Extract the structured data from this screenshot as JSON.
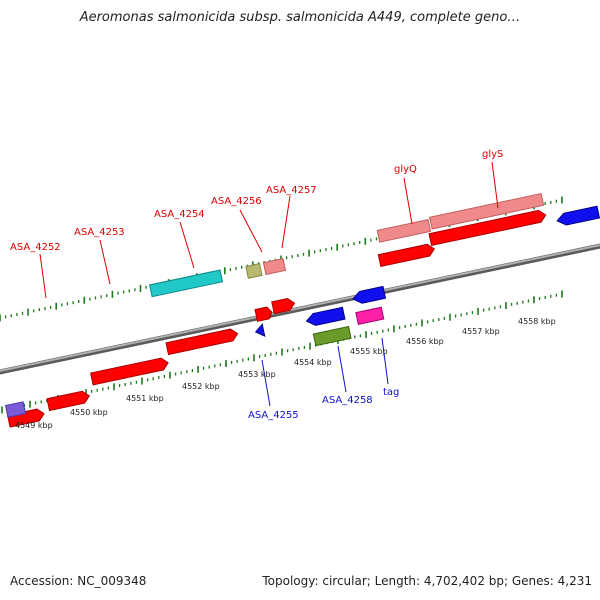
{
  "title": "Aeromonas salmonicida subsp. salmonicida A449, complete geno…",
  "footer": {
    "accession": "Accession: NC_009348",
    "summary": "Topology: circular; Length: 4,702,402 bp; Genes: 4,231"
  },
  "axis": {
    "tick_labels": [
      "4549 kbp",
      "4550 kbp",
      "4551 kbp",
      "4552 kbp",
      "4553 kbp",
      "4554 kbp",
      "4555 kbp",
      "4556 kbp",
      "4557 kbp",
      "4558 kbp"
    ]
  },
  "genes": {
    "forward_labels": [
      "ASA_4252",
      "ASA_4253",
      "ASA_4254",
      "ASA_4256",
      "ASA_4257",
      "glyQ",
      "glyS"
    ],
    "reverse_labels": [
      "ASA_4255",
      "ASA_4258",
      "tag"
    ]
  },
  "colors": {
    "cds": "#ff0000",
    "gene_track": "#f08080",
    "forward_label": "#dd0000",
    "reverse_label": "#1010cc",
    "reverse_gene": "#1010ee",
    "backbone": "#808080",
    "tick_mark": "#1a7a1a"
  }
}
